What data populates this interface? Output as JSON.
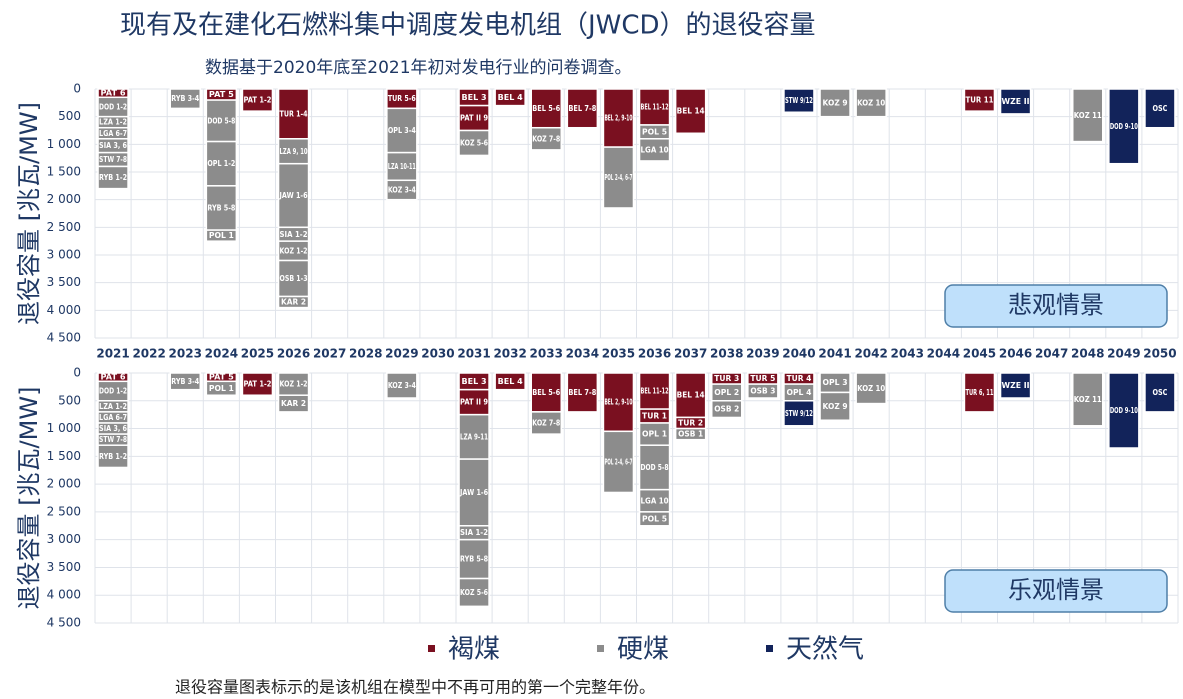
{
  "title": "现有及在建化石燃料集中调度发电机组（JWCD）的退役容量",
  "subtitle": "数据基于2020年底至2021年初对发电行业的问卷调查。",
  "footnote": "退役容量图表标示的是该机组在模型中不再可用的第一个完整年份。",
  "categories": [
    2021,
    2022,
    2023,
    2024,
    2025,
    2026,
    2027,
    2028,
    2029,
    2030,
    2031,
    2032,
    2033,
    2034,
    2035,
    2036,
    2037,
    2038,
    2039,
    2040,
    2041,
    2042,
    2043,
    2044,
    2045,
    2046,
    2047,
    2048,
    2049,
    2050
  ],
  "legend": [
    {
      "name": "褐煤",
      "color": "#7a1020"
    },
    {
      "name": "硬煤",
      "color": "#8c8c8c"
    },
    {
      "name": "天然气",
      "color": "#12235a"
    }
  ],
  "chart_data": [
    {
      "type": "bar",
      "scenario": "悲观情景",
      "ylabel": "退役容量 [兆瓦/MW]",
      "ylim": [
        0,
        4500
      ],
      "inverted": true,
      "grid": true,
      "yticks": [
        0,
        500,
        {
          "value": 1000,
          "label": "1 000"
        },
        {
          "value": 1500,
          "label": "1 500"
        },
        {
          "value": 2000,
          "label": "2 000"
        },
        {
          "value": 2500,
          "label": "2 500"
        },
        {
          "value": 3000,
          "label": "3 000"
        },
        {
          "value": 3500,
          "label": "3 500"
        },
        {
          "value": 4000,
          "label": "4 000"
        },
        {
          "value": 4500,
          "label": "4 500"
        }
      ],
      "stacks": [
        [
          {
            "label": "PAT 6",
            "value": 150,
            "fuel": 0
          },
          {
            "label": "DOD 1-2",
            "value": 350,
            "fuel": 1
          },
          {
            "label": "LZA 1-2",
            "value": 200,
            "fuel": 1
          },
          {
            "label": "LGA 6-7",
            "value": 200,
            "fuel": 1
          },
          {
            "label": "SIA 3, 6",
            "value": 250,
            "fuel": 1
          },
          {
            "label": "STW 7-8",
            "value": 250,
            "fuel": 1
          },
          {
            "label": "RYB 1-2",
            "value": 400,
            "fuel": 1
          }
        ],
        [],
        [
          {
            "label": "RYB 3-4",
            "value": 350,
            "fuel": 1
          }
        ],
        [
          {
            "label": "PAT 5",
            "value": 200,
            "fuel": 0
          },
          {
            "label": "DOD 5-8",
            "value": 750,
            "fuel": 1
          },
          {
            "label": "OPL 1-2",
            "value": 800,
            "fuel": 1
          },
          {
            "label": "RYB 5-8",
            "value": 800,
            "fuel": 1
          },
          {
            "label": "POL 1",
            "value": 200,
            "fuel": 1
          }
        ],
        [
          {
            "label": "PAT 1-2",
            "value": 400,
            "fuel": 0
          }
        ],
        [
          {
            "label": "TUR 1-4",
            "value": 900,
            "fuel": 0
          },
          {
            "label": "LZA 9, 10",
            "value": 450,
            "fuel": 1
          },
          {
            "label": "JAW 1-6",
            "value": 1150,
            "fuel": 1
          },
          {
            "label": "SIA 1-2",
            "value": 250,
            "fuel": 1
          },
          {
            "label": "KOZ 1-2",
            "value": 350,
            "fuel": 1
          },
          {
            "label": "OSB 1-3",
            "value": 650,
            "fuel": 1
          },
          {
            "label": "KAR 2",
            "value": 200,
            "fuel": 1
          }
        ],
        [],
        [],
        [
          {
            "label": "TUR 5-6",
            "value": 350,
            "fuel": 0
          },
          {
            "label": "OPL 3-4",
            "value": 800,
            "fuel": 1
          },
          {
            "label": "LZA 10-11",
            "value": 500,
            "fuel": 1
          },
          {
            "label": "KOZ 3-4",
            "value": 350,
            "fuel": 1
          }
        ],
        [],
        [
          {
            "label": "BEL 3",
            "value": 300,
            "fuel": 0
          },
          {
            "label": "PAT II 9",
            "value": 450,
            "fuel": 0
          },
          {
            "label": "KOZ 5-6",
            "value": 450,
            "fuel": 1
          }
        ],
        [
          {
            "label": "BEL 4",
            "value": 300,
            "fuel": 0
          }
        ],
        [
          {
            "label": "BEL 5-6",
            "value": 700,
            "fuel": 0
          },
          {
            "label": "KOZ 7-8",
            "value": 400,
            "fuel": 1
          }
        ],
        [
          {
            "label": "BEL 7-8",
            "value": 700,
            "fuel": 0
          }
        ],
        [
          {
            "label": "BEL 2, 9-10",
            "value": 1050,
            "fuel": 0
          },
          {
            "label": "POL 2-4, 6-7",
            "value": 1100,
            "fuel": 1
          }
        ],
        [
          {
            "label": "BEL 11-12",
            "value": 650,
            "fuel": 0
          },
          {
            "label": "POL 5",
            "value": 250,
            "fuel": 1
          },
          {
            "label": "LGA 10",
            "value": 400,
            "fuel": 1
          }
        ],
        [
          {
            "label": "BEL 14",
            "value": 800,
            "fuel": 0
          }
        ],
        [],
        [],
        [
          {
            "label": "STW 9/12",
            "value": 420,
            "fuel": 2
          }
        ],
        [
          {
            "label": "KOZ 9",
            "value": 500,
            "fuel": 1
          }
        ],
        [
          {
            "label": "KOZ 10",
            "value": 500,
            "fuel": 1
          }
        ],
        [],
        [],
        [
          {
            "label": "TUR 11",
            "value": 400,
            "fuel": 0
          }
        ],
        [
          {
            "label": "WZE II",
            "value": 450,
            "fuel": 2
          }
        ],
        [],
        [
          {
            "label": "KOZ 11",
            "value": 950,
            "fuel": 1
          }
        ],
        [
          {
            "label": "DOD 9-10",
            "value": 1350,
            "fuel": 2
          }
        ],
        [
          {
            "label": "OSC",
            "value": 700,
            "fuel": 2
          }
        ]
      ]
    },
    {
      "type": "bar",
      "scenario": "乐观情景",
      "ylabel": "退役容量 [兆瓦/MW]",
      "ylim": [
        0,
        4500
      ],
      "inverted": true,
      "grid": true,
      "yticks": [
        0,
        500,
        {
          "value": 1000,
          "label": "1 000"
        },
        {
          "value": 1500,
          "label": "1 500"
        },
        {
          "value": 2000,
          "label": "2 000"
        },
        {
          "value": 2500,
          "label": "2 500"
        },
        {
          "value": 3000,
          "label": "3 000"
        },
        {
          "value": 3500,
          "label": "3 500"
        },
        {
          "value": 4000,
          "label": "4 000"
        },
        {
          "value": 4500,
          "label": "4 500"
        }
      ],
      "stacks": [
        [
          {
            "label": "PAT 6",
            "value": 150,
            "fuel": 0
          },
          {
            "label": "DOD 1-2",
            "value": 350,
            "fuel": 1
          },
          {
            "label": "LZA 1-2",
            "value": 200,
            "fuel": 1
          },
          {
            "label": "LGA 6-7",
            "value": 200,
            "fuel": 1
          },
          {
            "label": "SIA 3, 6",
            "value": 200,
            "fuel": 1
          },
          {
            "label": "STW 7-8",
            "value": 200,
            "fuel": 1
          },
          {
            "label": "RYB 1-2",
            "value": 400,
            "fuel": 1
          }
        ],
        [],
        [
          {
            "label": "RYB 3-4",
            "value": 300,
            "fuel": 1
          }
        ],
        [
          {
            "label": "PAT 5",
            "value": 150,
            "fuel": 0
          },
          {
            "label": "POL 1",
            "value": 250,
            "fuel": 1
          }
        ],
        [
          {
            "label": "PAT 1-2",
            "value": 400,
            "fuel": 0
          }
        ],
        [
          {
            "label": "KOZ 1-2",
            "value": 400,
            "fuel": 1
          },
          {
            "label": "KAR 2",
            "value": 300,
            "fuel": 1
          }
        ],
        [],
        [],
        [
          {
            "label": "KOZ 3-4",
            "value": 450,
            "fuel": 1
          }
        ],
        [],
        [
          {
            "label": "BEL 3",
            "value": 300,
            "fuel": 0
          },
          {
            "label": "PAT II 9",
            "value": 450,
            "fuel": 0
          },
          {
            "label": "LZA 9-11",
            "value": 800,
            "fuel": 1
          },
          {
            "label": "JAW 1-6",
            "value": 1200,
            "fuel": 1
          },
          {
            "label": "SIA 1-2",
            "value": 250,
            "fuel": 1
          },
          {
            "label": "RYB 5-8",
            "value": 700,
            "fuel": 1
          },
          {
            "label": "KOZ 5-6",
            "value": 500,
            "fuel": 1
          }
        ],
        [
          {
            "label": "BEL 4",
            "value": 300,
            "fuel": 0
          }
        ],
        [
          {
            "label": "BEL 5-6",
            "value": 700,
            "fuel": 0
          },
          {
            "label": "KOZ 7-8",
            "value": 400,
            "fuel": 1
          }
        ],
        [
          {
            "label": "BEL 7-8",
            "value": 700,
            "fuel": 0
          }
        ],
        [
          {
            "label": "BEL 2, 9-10",
            "value": 1050,
            "fuel": 0
          },
          {
            "label": "POL 2-4, 6-7",
            "value": 1100,
            "fuel": 1
          }
        ],
        [
          {
            "label": "BEL 11-12",
            "value": 650,
            "fuel": 0
          },
          {
            "label": "TUR 1",
            "value": 250,
            "fuel": 0
          },
          {
            "label": "OPL 1",
            "value": 400,
            "fuel": 1
          },
          {
            "label": "DOD 5-8",
            "value": 800,
            "fuel": 1
          },
          {
            "label": "LGA 10",
            "value": 400,
            "fuel": 1
          },
          {
            "label": "POL 5",
            "value": 250,
            "fuel": 1
          }
        ],
        [
          {
            "label": "BEL 14",
            "value": 800,
            "fuel": 0
          },
          {
            "label": "TUR 2",
            "value": 200,
            "fuel": 0
          },
          {
            "label": "OSB 1",
            "value": 200,
            "fuel": 1
          }
        ],
        [
          {
            "label": "TUR 3",
            "value": 200,
            "fuel": 0
          },
          {
            "label": "OPL 2",
            "value": 300,
            "fuel": 1
          },
          {
            "label": "OSB 2",
            "value": 300,
            "fuel": 1
          }
        ],
        [
          {
            "label": "TUR 5",
            "value": 200,
            "fuel": 0
          },
          {
            "label": "OSB 3",
            "value": 250,
            "fuel": 1
          }
        ],
        [
          {
            "label": "TUR 4",
            "value": 200,
            "fuel": 0
          },
          {
            "label": "OPL 4",
            "value": 300,
            "fuel": 1
          },
          {
            "label": "STW 9/12",
            "value": 450,
            "fuel": 2
          }
        ],
        [
          {
            "label": "OPL 3",
            "value": 350,
            "fuel": 1
          },
          {
            "label": "KOZ 9",
            "value": 500,
            "fuel": 1
          }
        ],
        [
          {
            "label": "KOZ 10",
            "value": 550,
            "fuel": 1
          }
        ],
        [],
        [],
        [
          {
            "label": "TUR 6, 11",
            "value": 700,
            "fuel": 0
          }
        ],
        [
          {
            "label": "WZE II",
            "value": 450,
            "fuel": 2
          }
        ],
        [],
        [
          {
            "label": "KOZ 11",
            "value": 950,
            "fuel": 1
          }
        ],
        [
          {
            "label": "DOD 9-10",
            "value": 1350,
            "fuel": 2
          }
        ],
        [
          {
            "label": "OSC",
            "value": 700,
            "fuel": 2
          }
        ]
      ]
    }
  ]
}
